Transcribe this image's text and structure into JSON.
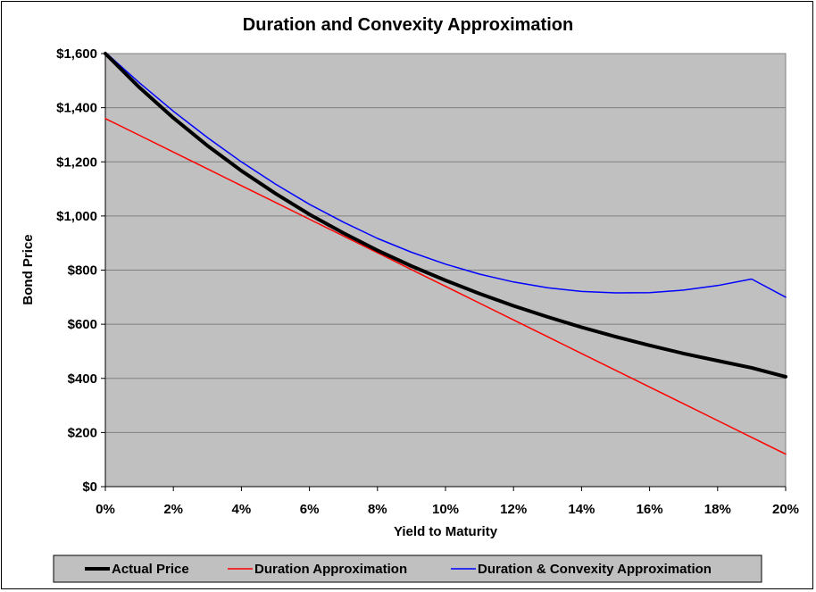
{
  "chart_data": {
    "type": "line",
    "title": "Duration and Convexity Approximation",
    "xlabel": "Yield to Maturity",
    "ylabel": "Bond Price",
    "xlim": [
      0,
      0.2
    ],
    "ylim": [
      0,
      1600
    ],
    "x_ticks": [
      "0%",
      "2%",
      "4%",
      "6%",
      "8%",
      "10%",
      "12%",
      "14%",
      "16%",
      "18%",
      "20%"
    ],
    "y_ticks": [
      "$0",
      "$200",
      "$400",
      "$600",
      "$800",
      "$1,000",
      "$1,200",
      "$1,400",
      "$1,600"
    ],
    "grid": "horizontal",
    "legend_position": "bottom",
    "background_color": "#c0c0c0",
    "x": [
      0,
      0.01,
      0.02,
      0.03,
      0.04,
      0.05,
      0.06,
      0.07,
      0.08,
      0.09,
      0.1,
      0.11,
      0.12,
      0.13,
      0.14,
      0.15,
      0.16,
      0.17,
      0.18,
      0.19,
      0.2
    ],
    "series": [
      {
        "name": "Actual Price",
        "color": "#000000",
        "values": [
          1600,
          1475,
          1362,
          1260,
          1167,
          1083,
          1006,
          937,
          873,
          815,
          762,
          713,
          668,
          627,
          589,
          554,
          522,
          492,
          465,
          439,
          406
        ]
      },
      {
        "name": "Duration Approximation",
        "color": "#ff0000",
        "values": [
          1360,
          1298,
          1236,
          1174,
          1112,
          1050,
          988,
          926,
          864,
          802,
          740,
          678,
          616,
          554,
          492,
          430,
          368,
          306,
          244,
          182,
          120
        ]
      },
      {
        "name": "Duration & Convexity Approximation",
        "color": "#0000ff",
        "values": [
          1605,
          1492,
          1387,
          1290,
          1200,
          1118,
          1043,
          977,
          917,
          866,
          822,
          785,
          756,
          735,
          721,
          716,
          717,
          726,
          743,
          767,
          700
        ]
      }
    ]
  }
}
